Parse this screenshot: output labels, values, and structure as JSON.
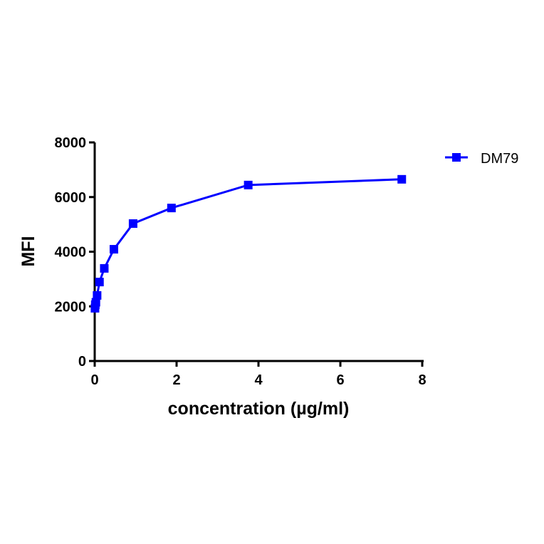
{
  "chart_data": {
    "type": "line",
    "title": "",
    "xlabel": "concentration (µg/ml)",
    "ylabel": "MFI",
    "xlim": [
      0,
      8
    ],
    "ylim": [
      0,
      8000
    ],
    "xticks": [
      0,
      2,
      4,
      6,
      8
    ],
    "yticks": [
      0,
      2000,
      4000,
      6000,
      8000
    ],
    "grid": false,
    "legend_position": "top-right",
    "series": [
      {
        "name": "DM79",
        "color": "#0000ff",
        "marker": "square",
        "x": [
          0.00733,
          0.0146,
          0.0293,
          0.0586,
          0.117,
          0.234,
          0.469,
          0.9375,
          1.875,
          3.75,
          7.5
        ],
        "y": [
          1930,
          2060,
          2150,
          2400,
          2890,
          3390,
          4090,
          5030,
          5600,
          6440,
          6650
        ]
      }
    ]
  },
  "labels": {
    "xlabel": "concentration (µg/ml)",
    "ylabel": "MFI",
    "legend": "DM79",
    "xticks": [
      "0",
      "2",
      "4",
      "6",
      "8"
    ],
    "yticks": [
      "0",
      "2000",
      "4000",
      "6000",
      "8000"
    ]
  }
}
